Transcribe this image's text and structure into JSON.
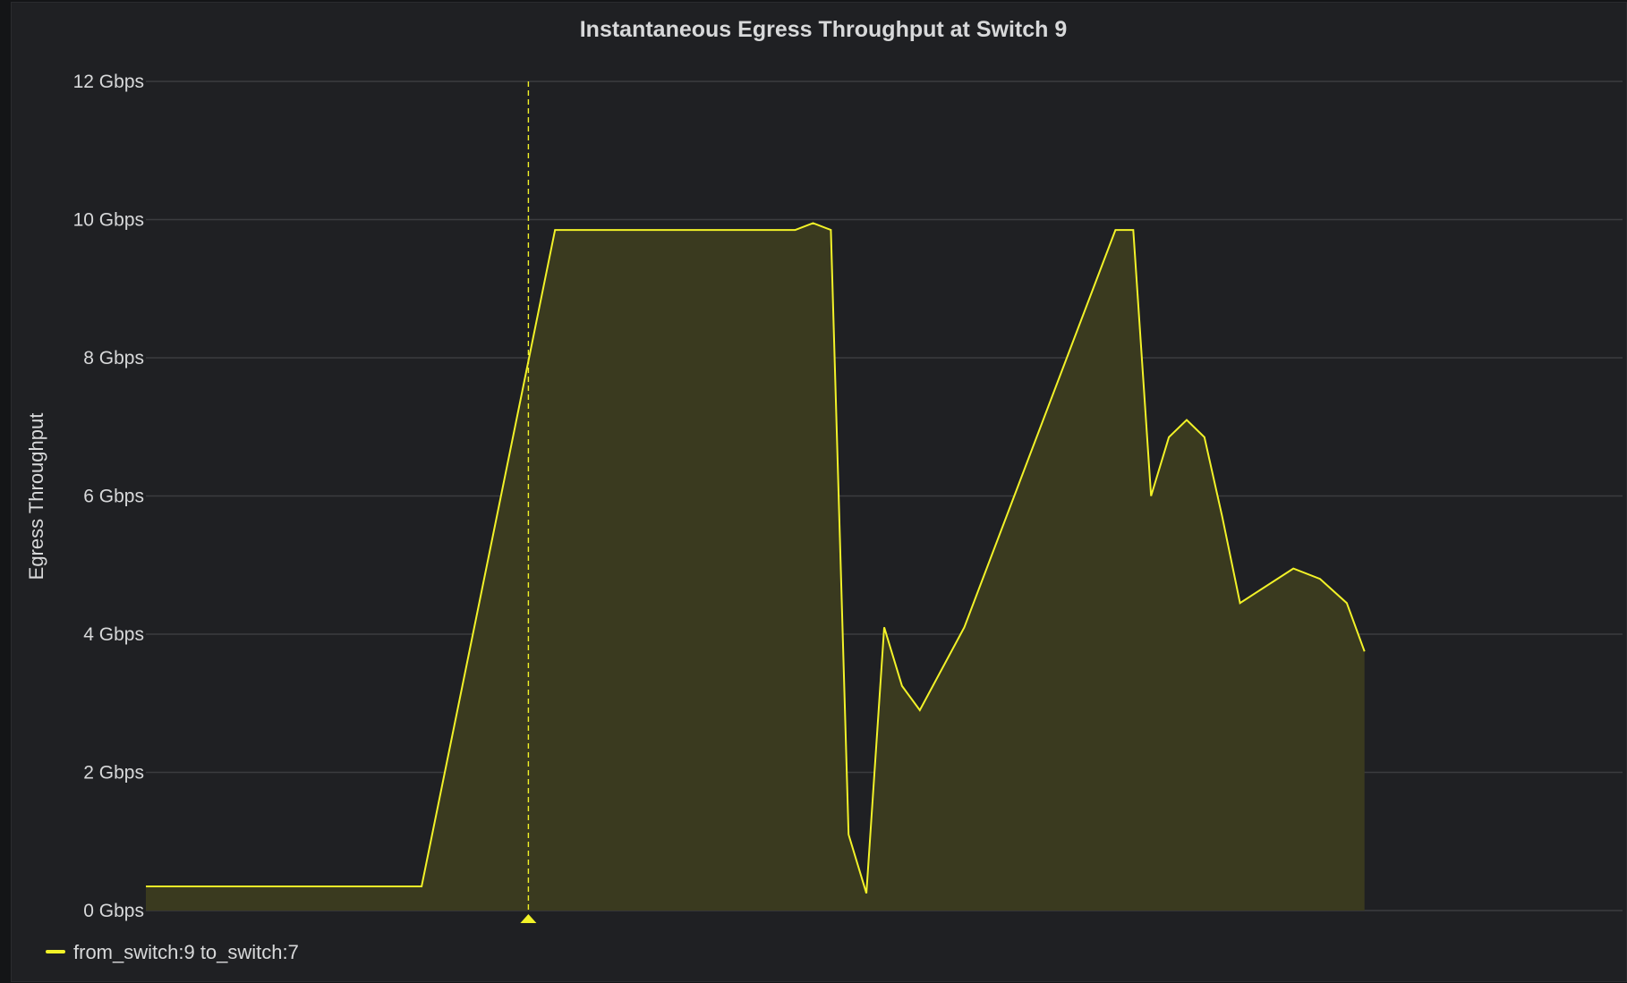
{
  "chart_data": {
    "type": "area",
    "title": "Instantaneous Egress Throughput at Switch 9",
    "xlabel": "",
    "ylabel": "Egress Throughput",
    "ylim": [
      0,
      12
    ],
    "y_unit": "Gbps",
    "y_ticks": [
      0,
      2,
      4,
      6,
      8,
      10,
      12
    ],
    "y_tick_labels": [
      "0 Gbps",
      "2 Gbps",
      "4 Gbps",
      "6 Gbps",
      "8 Gbps",
      "10 Gbps",
      "12 Gbps"
    ],
    "grid": true,
    "legend_position": "bottom-left",
    "series": [
      {
        "name": "from_switch:9 to_switch:7",
        "color": "#f2f228",
        "fill_color": "#3a3a1f",
        "x": [
          0,
          31,
          46,
          59,
          73,
          75,
          77,
          79,
          81,
          83,
          85,
          87,
          92,
          109,
          111,
          113,
          115,
          117,
          119,
          121,
          123,
          129,
          132,
          135,
          137
        ],
        "y": [
          0.35,
          0.35,
          9.85,
          9.85,
          9.85,
          9.95,
          9.85,
          1.1,
          0.25,
          4.1,
          3.25,
          2.9,
          4.1,
          9.85,
          9.85,
          6.0,
          6.85,
          7.1,
          6.85,
          5.7,
          4.45,
          4.95,
          4.8,
          4.45,
          3.75
        ]
      }
    ],
    "xlim": [
      0,
      166
    ],
    "annotation": {
      "type": "vertical-marker",
      "x": 43,
      "color": "#f2f228"
    }
  }
}
